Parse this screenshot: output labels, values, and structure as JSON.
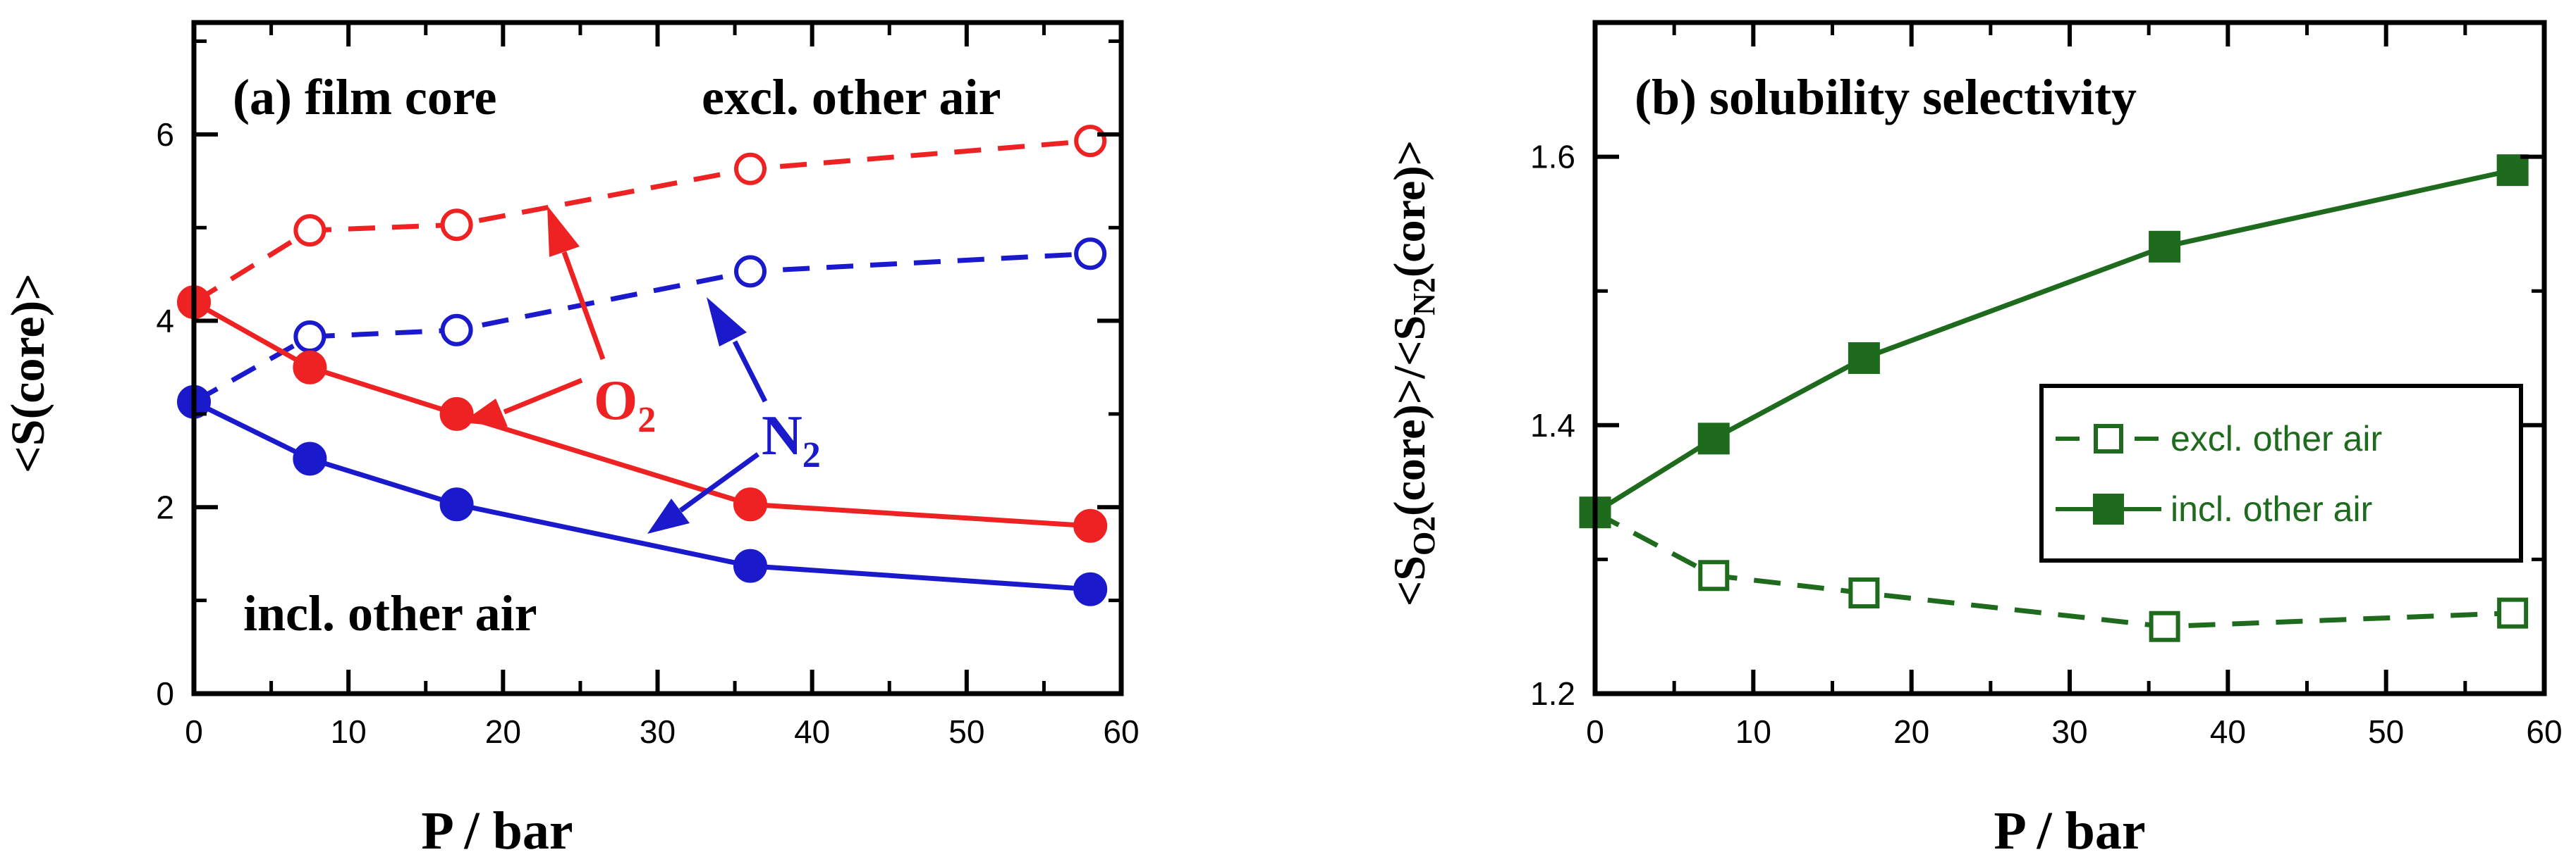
{
  "chart_data": [
    {
      "type": "line",
      "panel": "a",
      "title": "(a) film core",
      "xlabel": "P / bar",
      "ylabel": "<S(core)>",
      "xlim": [
        0,
        60
      ],
      "ylim": [
        0,
        7.2
      ],
      "xticks": [
        0,
        10,
        20,
        30,
        40,
        50,
        60
      ],
      "yticks": [
        0,
        2,
        4,
        6
      ],
      "grid": false,
      "colors": {
        "o2": "#ee2222",
        "n2": "#1a1acc"
      },
      "series": [
        {
          "name": "O2 excl. other air",
          "gas": "o2",
          "style": "dashed",
          "marker": "open-circle",
          "x": [
            0,
            7.5,
            17,
            36,
            58
          ],
          "y": [
            4.2,
            4.97,
            5.03,
            5.63,
            5.93
          ]
        },
        {
          "name": "N2 excl. other air",
          "gas": "n2",
          "style": "dashed",
          "marker": "open-circle",
          "x": [
            0,
            7.5,
            17,
            36,
            58
          ],
          "y": [
            3.13,
            3.83,
            3.9,
            4.53,
            4.72
          ]
        },
        {
          "name": "O2 incl. other air",
          "gas": "o2",
          "style": "solid",
          "marker": "filled-circle",
          "x": [
            0,
            7.5,
            17,
            36,
            58
          ],
          "y": [
            4.2,
            3.5,
            3.0,
            2.03,
            1.8
          ]
        },
        {
          "name": "N2 incl. other air",
          "gas": "n2",
          "style": "solid",
          "marker": "filled-circle",
          "x": [
            0,
            7.5,
            17,
            36,
            58
          ],
          "y": [
            3.13,
            2.52,
            2.03,
            1.37,
            1.12
          ]
        }
      ],
      "annotations": {
        "title": "(a) film core",
        "excl": "excl. other air",
        "incl": "incl. other air",
        "o2_base": "O",
        "o2_sub": "2",
        "n2_base": "N",
        "n2_sub": "2"
      }
    },
    {
      "type": "line",
      "panel": "b",
      "title": "(b) solubility selectivity",
      "xlabel": "P / bar",
      "ylabel": "<SO2(core)>/<SN2(core)>",
      "ylabel_parts": {
        "a": "<S",
        "a_sub": "O2",
        "b": "(core)>/<S",
        "b_sub": "N2",
        "c": "(core)>"
      },
      "xlim": [
        0,
        60
      ],
      "ylim": [
        1.2,
        1.7
      ],
      "xticks": [
        0,
        10,
        20,
        30,
        40,
        50,
        60
      ],
      "yticks": [
        1.2,
        1.4,
        1.6
      ],
      "grid": false,
      "color": "#1e6b1e",
      "series": [
        {
          "name": "excl. other air",
          "style": "dashed",
          "marker": "open-square",
          "x": [
            0,
            7.5,
            17,
            36,
            58
          ],
          "y": [
            1.335,
            1.288,
            1.275,
            1.25,
            1.26
          ]
        },
        {
          "name": "incl. other air",
          "style": "solid",
          "marker": "filled-square",
          "x": [
            0,
            7.5,
            17,
            36,
            58
          ],
          "y": [
            1.335,
            1.39,
            1.45,
            1.533,
            1.59
          ]
        }
      ],
      "legend": {
        "position": "right-center",
        "entries": [
          "excl. other air",
          "incl. other air"
        ]
      }
    }
  ]
}
